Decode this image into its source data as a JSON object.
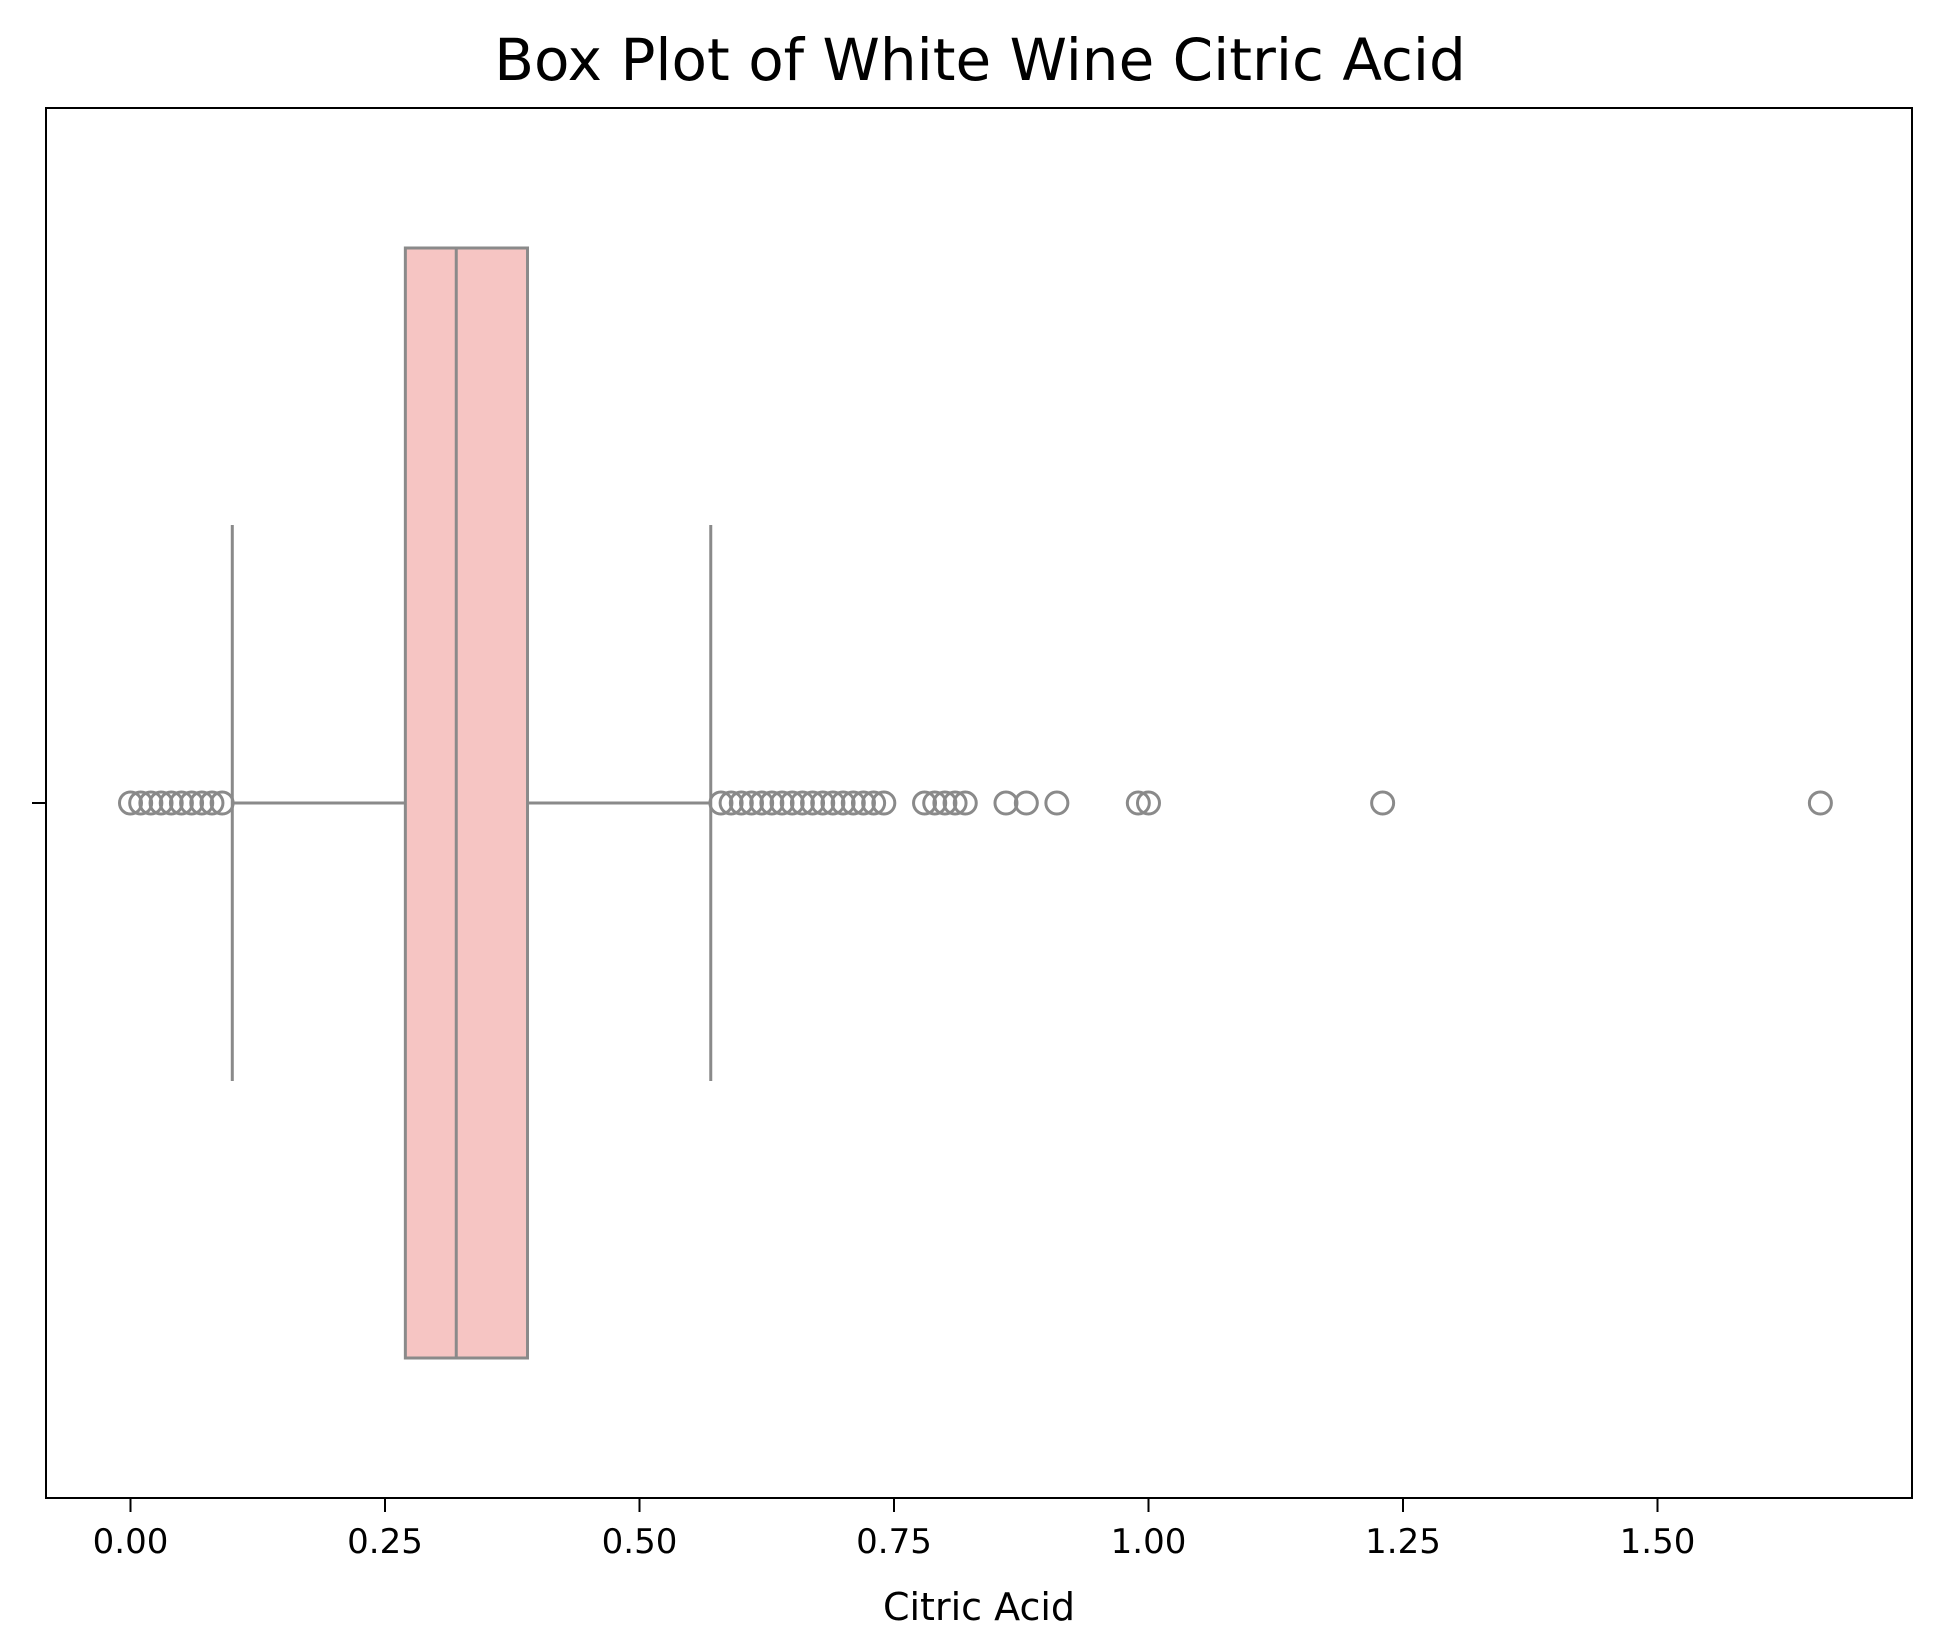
{
  "chart_data": {
    "type": "box",
    "title": "Box Plot of White Wine Citric Acid",
    "xlabel": "Citric Acid",
    "ylabel": "",
    "xlim": [
      -0.083,
      1.75
    ],
    "xticks": [
      0.0,
      0.25,
      0.5,
      0.75,
      1.0,
      1.25,
      1.5
    ],
    "xtick_labels": [
      "0.00",
      "0.25",
      "0.50",
      "0.75",
      "1.00",
      "1.25",
      "1.50"
    ],
    "grid": false,
    "box": {
      "whisker_low": 0.1,
      "q1": 0.27,
      "median": 0.32,
      "q3": 0.39,
      "whisker_high": 0.57
    },
    "outliers": [
      0.0,
      0.01,
      0.02,
      0.03,
      0.04,
      0.05,
      0.06,
      0.07,
      0.08,
      0.09,
      0.58,
      0.59,
      0.6,
      0.61,
      0.62,
      0.63,
      0.64,
      0.65,
      0.66,
      0.67,
      0.68,
      0.69,
      0.7,
      0.71,
      0.72,
      0.73,
      0.74,
      0.78,
      0.79,
      0.8,
      0.81,
      0.82,
      0.86,
      0.88,
      0.91,
      0.99,
      1.0,
      1.23,
      1.66
    ],
    "colors": {
      "box_fill": "#f6c5c3",
      "line": "#8a8a8a",
      "frame": "#000000"
    }
  }
}
